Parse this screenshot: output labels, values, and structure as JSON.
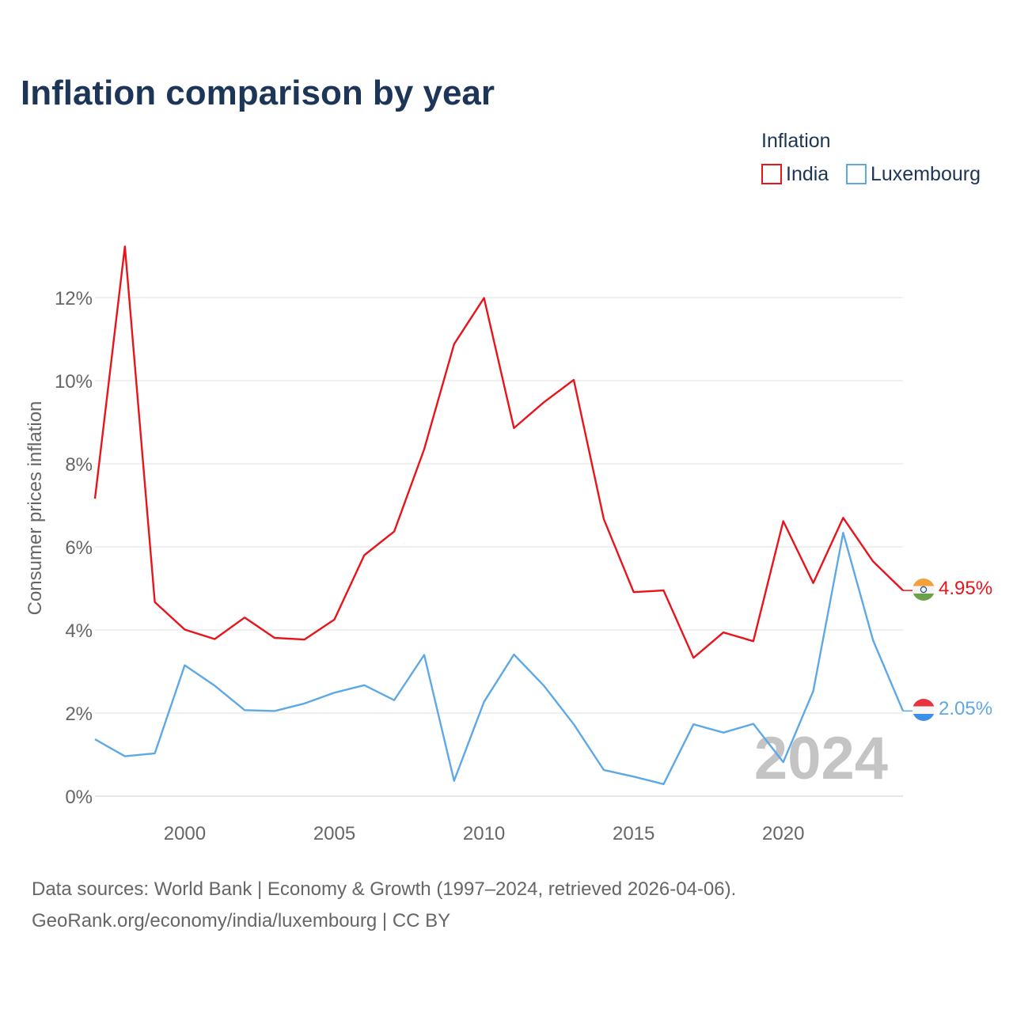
{
  "title": "Inflation comparison by year",
  "legend": {
    "title": "Inflation",
    "items": [
      {
        "label": "India",
        "color": "#e8141c"
      },
      {
        "label": "Luxembourg",
        "color": "#5ea8e6"
      }
    ]
  },
  "year_watermark": "2024",
  "source_lines": [
    "Data sources: World Bank | Economy & Growth (1997–2024, retrieved 2026-04-06).",
    "GeoRank.org/economy/india/luxembourg | CC BY"
  ],
  "chart_data": {
    "type": "line",
    "title": "Inflation comparison by year",
    "xlabel": "",
    "ylabel": "Consumer prices inflation",
    "x": [
      1997,
      1998,
      1999,
      2000,
      2001,
      2002,
      2003,
      2004,
      2005,
      2006,
      2007,
      2008,
      2009,
      2010,
      2011,
      2012,
      2013,
      2014,
      2015,
      2016,
      2017,
      2018,
      2019,
      2020,
      2021,
      2022,
      2023,
      2024
    ],
    "xlim": [
      1997,
      2024
    ],
    "ylim": [
      0,
      13.2
    ],
    "x_ticks": [
      2000,
      2005,
      2010,
      2015,
      2020
    ],
    "y_ticks": [
      0,
      2,
      4,
      6,
      8,
      10,
      12
    ],
    "y_tick_labels": [
      "0%",
      "2%",
      "4%",
      "6%",
      "8%",
      "10%",
      "12%"
    ],
    "grid": true,
    "legend_position": "top-right",
    "series": [
      {
        "name": "India",
        "color": "#e8141c",
        "end_label": "4.95%",
        "values": [
          7.16,
          13.23,
          4.67,
          4.01,
          3.78,
          4.3,
          3.81,
          3.77,
          4.25,
          5.8,
          6.37,
          8.35,
          10.88,
          11.99,
          8.86,
          9.48,
          10.02,
          6.67,
          4.91,
          4.95,
          3.33,
          3.94,
          3.73,
          6.62,
          5.13,
          6.7,
          5.65,
          4.95
        ]
      },
      {
        "name": "Luxembourg",
        "color": "#5ea8e6",
        "end_label": "2.05%",
        "values": [
          1.37,
          0.96,
          1.03,
          3.15,
          2.66,
          2.07,
          2.05,
          2.23,
          2.49,
          2.67,
          2.31,
          3.4,
          0.37,
          2.27,
          3.41,
          2.66,
          1.73,
          0.63,
          0.47,
          0.29,
          1.73,
          1.53,
          1.74,
          0.82,
          2.53,
          6.34,
          3.75,
          2.05
        ]
      }
    ]
  }
}
